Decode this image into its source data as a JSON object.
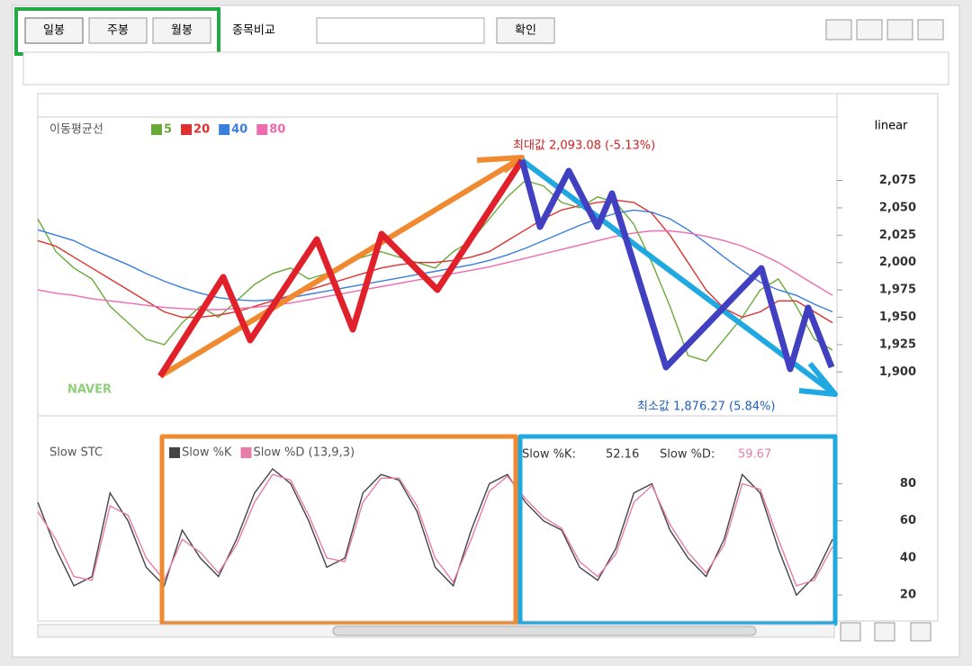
{
  "toolbar": {
    "buttons": [
      "일봉",
      "주봉",
      "월봉"
    ],
    "compare_label": "종목비교",
    "confirm": "확인"
  },
  "chart_data": [
    {
      "type": "line",
      "legend_title": "이동평균선",
      "scale_label": "linear",
      "watermark": "NAVER",
      "annotations": {
        "max": "최대값 2,093.08 (-5.13%)",
        "min": "최소값 1,876.27 (5.84%)"
      },
      "ylim": [
        1860,
        2133
      ],
      "yticks": [
        {
          "value": 1900,
          "label": "1,900"
        },
        {
          "value": 1925,
          "label": "1,925"
        },
        {
          "value": 1950,
          "label": "1,950"
        },
        {
          "value": 1975,
          "label": "1,975"
        },
        {
          "value": 2000,
          "label": "2,000"
        },
        {
          "value": 2025,
          "label": "2,025"
        },
        {
          "value": 2050,
          "label": "2,050"
        },
        {
          "value": 2075,
          "label": "2,075"
        }
      ],
      "series": [
        {
          "name": "5",
          "color": "#6aaa3a",
          "values": [
            2040,
            2010,
            1995,
            1985,
            1960,
            1945,
            1930,
            1925,
            1945,
            1960,
            1950,
            1965,
            1980,
            1990,
            1995,
            1985,
            1990,
            2000,
            2005,
            2010,
            2005,
            2000,
            1995,
            2010,
            2020,
            2040,
            2060,
            2075,
            2070,
            2055,
            2050,
            2060,
            2055,
            2035,
            2000,
            1960,
            1915,
            1910,
            1930,
            1950,
            1975,
            1985,
            1960,
            1930,
            1920
          ]
        },
        {
          "name": "20",
          "color": "#e03030",
          "values": [
            2020,
            2015,
            2005,
            1995,
            1985,
            1975,
            1965,
            1955,
            1950,
            1950,
            1952,
            1955,
            1960,
            1965,
            1970,
            1975,
            1980,
            1985,
            1990,
            1995,
            1998,
            2000,
            2000,
            2002,
            2005,
            2010,
            2020,
            2030,
            2040,
            2048,
            2052,
            2055,
            2057,
            2055,
            2045,
            2025,
            2000,
            1975,
            1958,
            1950,
            1955,
            1965,
            1965,
            1955,
            1945
          ]
        },
        {
          "name": "40",
          "color": "#3a7ee0",
          "values": [
            2030,
            2025,
            2020,
            2012,
            2005,
            1998,
            1990,
            1983,
            1977,
            1972,
            1968,
            1966,
            1965,
            1966,
            1968,
            1971,
            1974,
            1977,
            1980,
            1983,
            1986,
            1989,
            1992,
            1995,
            1998,
            2002,
            2007,
            2013,
            2020,
            2027,
            2034,
            2040,
            2045,
            2048,
            2046,
            2040,
            2030,
            2018,
            2005,
            1993,
            1982,
            1975,
            1970,
            1962,
            1955
          ]
        },
        {
          "name": "80",
          "color": "#f06ab0",
          "values": [
            1975,
            1972,
            1970,
            1967,
            1965,
            1963,
            1961,
            1959,
            1958,
            1957,
            1957,
            1958,
            1959,
            1961,
            1963,
            1966,
            1969,
            1972,
            1975,
            1978,
            1981,
            1984,
            1987,
            1990,
            1993,
            1996,
            2000,
            2004,
            2008,
            2012,
            2016,
            2020,
            2024,
            2027,
            2029,
            2029,
            2027,
            2024,
            2020,
            2015,
            2008,
            2000,
            1990,
            1980,
            1970
          ]
        }
      ]
    },
    {
      "type": "line",
      "title": "Slow STC",
      "ylim": [
        7,
        104
      ],
      "yticks": [
        20,
        40,
        60,
        80
      ],
      "readout": {
        "k_label": "Slow %K:",
        "k_value": 52.16,
        "d_label": "Slow %D:",
        "d_value": 59.67
      },
      "series": [
        {
          "name": "Slow %K",
          "color": "#444444",
          "values": [
            70,
            45,
            25,
            30,
            75,
            60,
            35,
            25,
            55,
            40,
            30,
            50,
            75,
            88,
            80,
            60,
            35,
            40,
            75,
            85,
            82,
            65,
            35,
            25,
            55,
            80,
            85,
            70,
            60,
            55,
            35,
            28,
            45,
            75,
            80,
            55,
            40,
            30,
            50,
            85,
            75,
            45,
            20,
            30,
            50
          ]
        },
        {
          "name": "Slow %D (13,9,3)",
          "color": "#e87ca8",
          "values": [
            65,
            50,
            30,
            28,
            68,
            63,
            40,
            28,
            50,
            43,
            32,
            47,
            70,
            85,
            82,
            63,
            40,
            38,
            70,
            83,
            83,
            68,
            40,
            27,
            50,
            76,
            84,
            72,
            62,
            56,
            38,
            30,
            42,
            70,
            79,
            58,
            43,
            32,
            47,
            80,
            77,
            50,
            25,
            28,
            46
          ]
        }
      ]
    }
  ]
}
